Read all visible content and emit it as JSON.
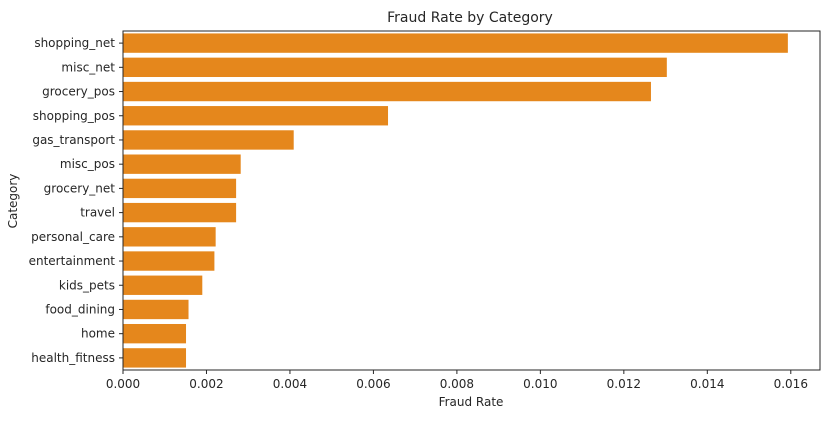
{
  "chart_data": {
    "type": "bar",
    "orientation": "horizontal",
    "title": "Fraud Rate by Category",
    "xlabel": "Fraud Rate",
    "ylabel": "Category",
    "categories": [
      "shopping_net",
      "misc_net",
      "grocery_pos",
      "shopping_pos",
      "gas_transport",
      "misc_pos",
      "grocery_net",
      "travel",
      "personal_care",
      "entertainment",
      "kids_pets",
      "food_dining",
      "home",
      "health_fitness"
    ],
    "values": [
      0.01593,
      0.01303,
      0.01265,
      0.00635,
      0.00409,
      0.00282,
      0.00271,
      0.00271,
      0.00222,
      0.00219,
      0.0019,
      0.00157,
      0.00151,
      0.00151
    ],
    "xlim": [
      0,
      0.0167
    ],
    "xticks": [
      "0.000",
      "0.002",
      "0.004",
      "0.006",
      "0.008",
      "0.010",
      "0.012",
      "0.014",
      "0.016"
    ],
    "bar_color": "#e5871c",
    "grid": false,
    "legend": "none"
  }
}
